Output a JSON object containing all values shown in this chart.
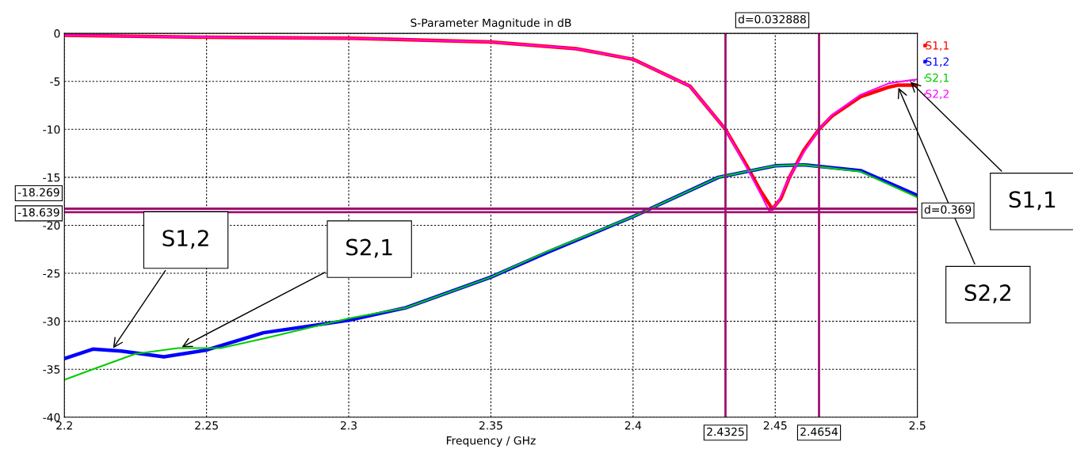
{
  "chart_data": {
    "type": "line",
    "title": "S-Parameter Magnitude in dB",
    "xlabel": "Frequency / GHz",
    "xlim": [
      2.2,
      2.5
    ],
    "xticks": [
      2.2,
      2.25,
      2.3,
      2.35,
      2.4,
      2.45,
      2.5
    ],
    "ylim": [
      -40,
      0
    ],
    "yticks": [
      -40,
      -35,
      -30,
      -25,
      -20,
      -15,
      -10,
      -5,
      0
    ],
    "grid": true,
    "legend": "top right",
    "line_style": "solid",
    "marker": "none",
    "series": [
      {
        "name": "S1,1",
        "color": "#ff0000",
        "x": [
          2.2,
          2.25,
          2.3,
          2.35,
          2.38,
          2.4,
          2.42,
          2.4325,
          2.44,
          2.445,
          2.449,
          2.452,
          2.455,
          2.46,
          2.4654,
          2.47,
          2.48,
          2.49,
          2.493,
          2.5
        ],
        "values": [
          -0.2,
          -0.4,
          -0.5,
          -0.9,
          -1.6,
          -2.7,
          -5.5,
          -10,
          -13.8,
          -16.5,
          -18.3,
          -17.2,
          -15,
          -12.2,
          -10,
          -8.6,
          -6.6,
          -5.6,
          -5.4,
          -5.4
        ]
      },
      {
        "name": "S1,2",
        "color": "#0000ff",
        "x": [
          2.2,
          2.21,
          2.22,
          2.235,
          2.25,
          2.27,
          2.3,
          2.32,
          2.35,
          2.37,
          2.4,
          2.43,
          2.45,
          2.46,
          2.48,
          2.5
        ],
        "values": [
          -33.9,
          -32.9,
          -33.1,
          -33.7,
          -33,
          -31.2,
          -29.9,
          -28.6,
          -25.4,
          -22.8,
          -19.1,
          -15,
          -13.8,
          -13.7,
          -14.3,
          -16.9
        ]
      },
      {
        "name": "S2,1",
        "color": "#00cc00",
        "x": [
          2.2,
          2.21,
          2.225,
          2.24,
          2.255,
          2.27,
          2.3,
          2.32,
          2.35,
          2.37,
          2.4,
          2.43,
          2.45,
          2.46,
          2.48,
          2.5
        ],
        "values": [
          -36.1,
          -35,
          -33.4,
          -32.8,
          -32.8,
          -31.8,
          -29.7,
          -28.6,
          -25.4,
          -22.7,
          -19.1,
          -15,
          -13.8,
          -13.7,
          -14.4,
          -17.1
        ]
      },
      {
        "name": "S2,2",
        "color": "#ff00ff",
        "x": [
          2.2,
          2.25,
          2.3,
          2.35,
          2.38,
          2.4,
          2.42,
          2.4325,
          2.44,
          2.445,
          2.448,
          2.451,
          2.455,
          2.46,
          2.4654,
          2.47,
          2.48,
          2.49,
          2.497,
          2.5
        ],
        "values": [
          -0.2,
          -0.4,
          -0.5,
          -0.9,
          -1.6,
          -2.7,
          -5.5,
          -10,
          -14,
          -16.8,
          -18.6,
          -17.6,
          -15,
          -12.4,
          -10,
          -8.5,
          -6.4,
          -5.2,
          -4.9,
          -4.8
        ]
      }
    ],
    "ref_lines": [
      {
        "axis": "x",
        "value": 2.4325,
        "label": "2.4325",
        "color": "#a0106e"
      },
      {
        "axis": "x",
        "value": 2.4654,
        "label": "2.4654",
        "color": "#a0106e"
      },
      {
        "axis": "y",
        "value": -18.269,
        "label": "-18.269",
        "color": "#a0106e"
      },
      {
        "axis": "y",
        "value": -18.639,
        "label": "-18.639",
        "color": "#a0106e"
      }
    ],
    "annotations": [
      "d=0.032888",
      "d=0.369",
      {
        "text": "S1,1",
        "x": 2.497,
        "y": -4.9
      },
      {
        "text": "S2,2",
        "x": 2.493,
        "y": -5.45
      },
      {
        "text": "S1,2",
        "x": 2.2167,
        "y": -33
      },
      {
        "text": "S2,1",
        "x": 2.2406,
        "y": -32.8
      }
    ]
  }
}
